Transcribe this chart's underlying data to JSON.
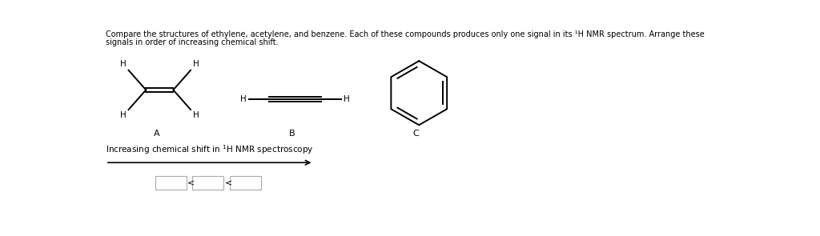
{
  "background_color": "#ffffff",
  "text_color": "#000000",
  "title_line1": "Compare the structures of ethylene, acetylene, and benzene. Each of these compounds produces only one signal in its ¹H NMR spectrum. Arrange these",
  "title_line2": "signals in order of increasing chemical shift.",
  "label_A": "A",
  "label_B": "B",
  "label_C": "C",
  "arrow_label": "Increasing chemical shift in ¹H NMR spectroscopy"
}
